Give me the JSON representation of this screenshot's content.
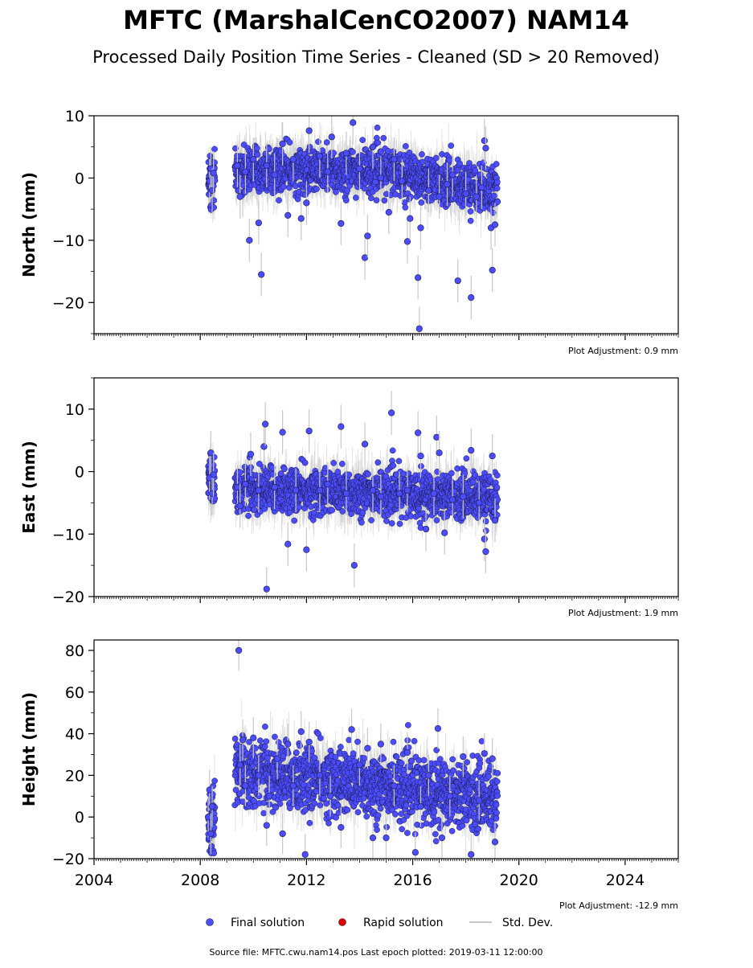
{
  "title": "MFTC (MarshalCenCO2007) NAM14",
  "subtitle": "Processed Daily Position Time Series - Cleaned (SD > 20 Removed)",
  "source_text": "Source file: MFTC.cwu.nam14.pos  Last epoch plotted: 2019-03-11 12:00:00",
  "colors": {
    "final": "#4b4bff",
    "rapid": "#dd0000",
    "stddev": "#c8c8c8"
  },
  "legend": {
    "placement": "bottom-center",
    "items": [
      {
        "label": "Final solution",
        "marker": "circle",
        "color": "#4b4bff"
      },
      {
        "label": "Rapid solution",
        "marker": "circle",
        "color": "#dd0000"
      },
      {
        "label": "Std. Dev.",
        "marker": "line",
        "color": "#c8c8c8"
      }
    ]
  },
  "chart_data": [
    {
      "type": "scatter",
      "ylabel": "North (mm)",
      "ylim": [
        -25,
        10
      ],
      "yticks": [
        10,
        0,
        -10,
        -20
      ],
      "ytick_labels": [
        "10",
        "0",
        "−10",
        "−20"
      ],
      "xlim": [
        2004,
        2026
      ],
      "adjustment": "Plot Adjustment: 0.9 mm",
      "points": [
        [
          2008.35,
          -0.5
        ],
        [
          2008.4,
          1.5
        ],
        [
          2008.45,
          -2.0
        ],
        [
          2008.5,
          0.8
        ],
        [
          2009.4,
          2.0
        ],
        [
          2009.5,
          -3.0
        ],
        [
          2009.7,
          1.0
        ],
        [
          2009.85,
          -10.0
        ],
        [
          2010.0,
          3.0
        ],
        [
          2010.2,
          -7.2
        ],
        [
          2010.3,
          -15.5
        ],
        [
          2010.5,
          2.0
        ],
        [
          2010.8,
          0.5
        ],
        [
          2011.1,
          5.5
        ],
        [
          2011.3,
          -6.0
        ],
        [
          2011.5,
          3.0
        ],
        [
          2011.8,
          -6.5
        ],
        [
          2012.0,
          -4.0
        ],
        [
          2012.1,
          7.6
        ],
        [
          2012.5,
          3.5
        ],
        [
          2012.8,
          1.0
        ],
        [
          2012.95,
          6.6
        ],
        [
          2013.3,
          -7.3
        ],
        [
          2013.5,
          4.0
        ],
        [
          2013.75,
          8.9
        ],
        [
          2014.0,
          1.5
        ],
        [
          2014.2,
          -12.8
        ],
        [
          2014.3,
          -9.3
        ],
        [
          2014.5,
          5.0
        ],
        [
          2014.8,
          0.0
        ],
        [
          2015.1,
          -5.5
        ],
        [
          2015.3,
          3.0
        ],
        [
          2015.6,
          -0.5
        ],
        [
          2015.8,
          -10.2
        ],
        [
          2015.9,
          -6.5
        ],
        [
          2016.2,
          -16.0
        ],
        [
          2016.25,
          -24.2
        ],
        [
          2016.3,
          -8.0
        ],
        [
          2016.6,
          -2.0
        ],
        [
          2017.0,
          -3.0
        ],
        [
          2017.3,
          -1.0
        ],
        [
          2017.5,
          0.5
        ],
        [
          2017.7,
          -16.5
        ],
        [
          2018.0,
          -2.5
        ],
        [
          2018.2,
          -19.2
        ],
        [
          2018.4,
          -3.0
        ],
        [
          2018.6,
          -1.5
        ],
        [
          2018.7,
          6.0
        ],
        [
          2018.75,
          4.8
        ],
        [
          2018.95,
          -8.0
        ],
        [
          2019.0,
          -14.8
        ],
        [
          2019.1,
          -7.5
        ]
      ]
    },
    {
      "type": "scatter",
      "ylabel": "East (mm)",
      "ylim": [
        -20,
        15
      ],
      "yticks": [
        10,
        0,
        -10,
        -20
      ],
      "ytick_labels": [
        "10",
        "0",
        "−10",
        "−20"
      ],
      "xlim": [
        2004,
        2026
      ],
      "adjustment": "Plot Adjustment: 1.9 mm",
      "points": [
        [
          2008.35,
          -1.0
        ],
        [
          2008.4,
          3.0
        ],
        [
          2008.45,
          -3.5
        ],
        [
          2008.5,
          -0.5
        ],
        [
          2009.4,
          -2.5
        ],
        [
          2009.5,
          -5.5
        ],
        [
          2009.7,
          -2.0
        ],
        [
          2009.9,
          2.8
        ],
        [
          2010.2,
          -3.0
        ],
        [
          2010.4,
          4.0
        ],
        [
          2010.45,
          7.6
        ],
        [
          2010.5,
          -18.8
        ],
        [
          2010.8,
          -2.5
        ],
        [
          2011.1,
          6.3
        ],
        [
          2011.3,
          -11.6
        ],
        [
          2011.6,
          -3.0
        ],
        [
          2012.0,
          -12.5
        ],
        [
          2012.1,
          6.5
        ],
        [
          2012.5,
          -3.0
        ],
        [
          2012.8,
          -2.0
        ],
        [
          2013.3,
          7.2
        ],
        [
          2013.5,
          -3.5
        ],
        [
          2013.8,
          -15.0
        ],
        [
          2014.2,
          4.4
        ],
        [
          2014.5,
          -3.0
        ],
        [
          2014.8,
          -4.0
        ],
        [
          2015.2,
          9.4
        ],
        [
          2015.5,
          -3.5
        ],
        [
          2015.8,
          -3.0
        ],
        [
          2016.2,
          6.2
        ],
        [
          2016.3,
          2.5
        ],
        [
          2016.5,
          -9.2
        ],
        [
          2016.8,
          -3.5
        ],
        [
          2016.9,
          5.5
        ],
        [
          2017.0,
          3.0
        ],
        [
          2017.2,
          -9.8
        ],
        [
          2017.5,
          -4.5
        ],
        [
          2017.9,
          -4.0
        ],
        [
          2018.2,
          3.4
        ],
        [
          2018.5,
          -5.0
        ],
        [
          2018.7,
          -10.8
        ],
        [
          2018.75,
          -12.8
        ],
        [
          2019.0,
          2.5
        ],
        [
          2019.1,
          -7.8
        ]
      ]
    },
    {
      "type": "scatter",
      "ylabel": "Height (mm)",
      "ylim": [
        -20,
        85
      ],
      "yticks": [
        80,
        60,
        40,
        20,
        0,
        -20
      ],
      "ytick_labels": [
        "80",
        "60",
        "40",
        "20",
        "0",
        "−20"
      ],
      "xlim": [
        2004,
        2026
      ],
      "xticks": [
        2004,
        2008,
        2012,
        2016,
        2020,
        2024
      ],
      "xtick_labels": [
        "2004",
        "2008",
        "2012",
        "2016",
        "2020",
        "2024"
      ],
      "adjustment": "Plot Adjustment: -12.9 mm",
      "points": [
        [
          2008.3,
          0.0
        ],
        [
          2008.35,
          13.0
        ],
        [
          2008.4,
          -8.0
        ],
        [
          2008.45,
          5.0
        ],
        [
          2009.45,
          80.0
        ],
        [
          2009.5,
          25.0
        ],
        [
          2009.6,
          37.0
        ],
        [
          2009.7,
          15.0
        ],
        [
          2010.0,
          38.0
        ],
        [
          2010.2,
          20.0
        ],
        [
          2010.5,
          -4.0
        ],
        [
          2010.6,
          10.0
        ],
        [
          2010.9,
          28.0
        ],
        [
          2011.1,
          -8.0
        ],
        [
          2011.3,
          35.0
        ],
        [
          2011.5,
          15.0
        ],
        [
          2011.8,
          41.0
        ],
        [
          2011.95,
          -18.0
        ],
        [
          2012.1,
          36.0
        ],
        [
          2012.5,
          20.0
        ],
        [
          2012.9,
          10.0
        ],
        [
          2013.3,
          -5.0
        ],
        [
          2013.7,
          42.0
        ],
        [
          2014.0,
          25.0
        ],
        [
          2014.3,
          33.0
        ],
        [
          2014.5,
          -10.0
        ],
        [
          2014.8,
          35.0
        ],
        [
          2015.0,
          -10.0
        ],
        [
          2015.3,
          15.0
        ],
        [
          2015.8,
          31.0
        ],
        [
          2016.1,
          -17.0
        ],
        [
          2016.3,
          5.0
        ],
        [
          2016.6,
          20.0
        ],
        [
          2016.95,
          42.5
        ],
        [
          2017.1,
          -10.0
        ],
        [
          2017.4,
          10.0
        ],
        [
          2017.9,
          29.0
        ],
        [
          2018.2,
          -18.0
        ],
        [
          2018.5,
          8.0
        ],
        [
          2018.7,
          30.5
        ],
        [
          2019.0,
          28.0
        ],
        [
          2019.1,
          -12.0
        ]
      ]
    }
  ]
}
